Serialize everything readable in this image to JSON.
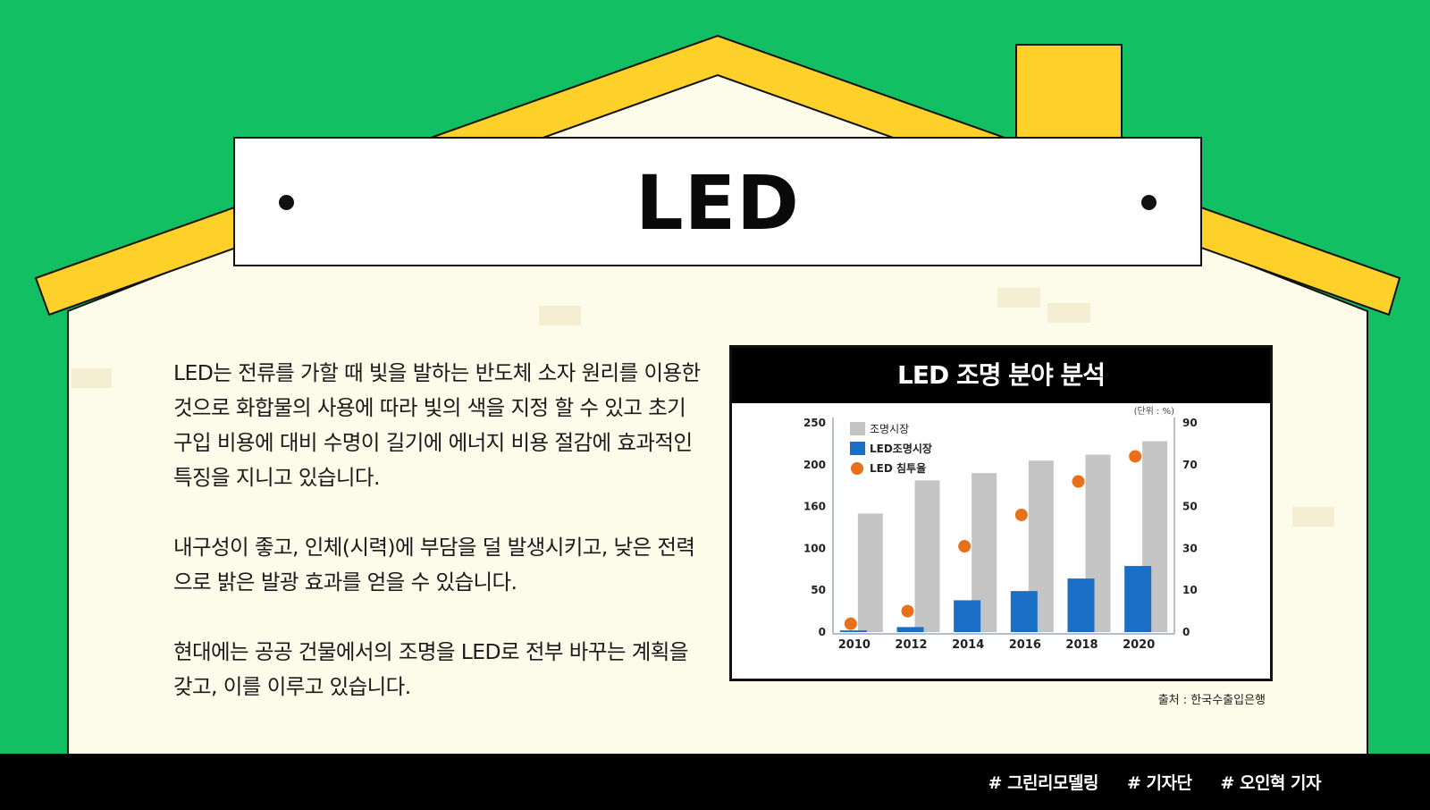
{
  "sign": {
    "title": "LED"
  },
  "body": {
    "paragraphs": [
      "LED는 전류를 가할 때 빛을 발하는 반도체 소자 원리를 이용한 것으로 화합물의 사용에 따라 빛의 색을 지정 할 수 있고 초기 구입 비용에 대비 수명이 길기에 에너지 비용 절감에 효과적인 특징을 지니고 있습니다.",
      "내구성이 좋고, 인체(시력)에 부담을 덜 발생시키고, 낮은 전력으로 밝은 발광 효과를 얻을 수 있습니다.",
      "현대에는 공공 건물에서의 조명을 LED로 전부 바꾸는 계획을 갖고, 이를 이루고 있습니다."
    ]
  },
  "chart": {
    "header": "LED 조명 분야 분석",
    "unit": "(단위 : %)",
    "source": "출처 : 한국수출입은행"
  },
  "chart_data": {
    "type": "bar",
    "title": "LED 조명 분야 분석",
    "categories": [
      "2010",
      "2012",
      "2014",
      "2016",
      "2018",
      "2020"
    ],
    "series": [
      {
        "name": "조명시장",
        "type": "bar",
        "axis": "left",
        "color": "#c4c4c4",
        "values": [
          150,
          185,
          192,
          205,
          212,
          228
        ]
      },
      {
        "name": "LED조명시장",
        "type": "bar",
        "axis": "left",
        "color": "#1a6fc4",
        "values": [
          2,
          6,
          38,
          49,
          64,
          79
        ]
      },
      {
        "name": "LED 침투율",
        "type": "scatter",
        "axis": "right",
        "color": "#e8701a",
        "values": [
          2,
          5,
          31,
          46,
          62,
          74
        ]
      }
    ],
    "left_axis": {
      "ticks": [
        "0",
        "50",
        "100",
        "160",
        "200",
        "250"
      ]
    },
    "right_axis": {
      "ticks": [
        "0",
        "10",
        "30",
        "50",
        "70",
        "90"
      ]
    },
    "legend_position": "top-left"
  },
  "footer": {
    "tags": [
      "# 그린리모델링",
      "# 기자단",
      "# 오인혁 기자"
    ]
  },
  "colors": {
    "background": "#12bf63",
    "roof": "#fdd02a",
    "wall": "#fdfbe9",
    "brick": "#f5eed3",
    "footer": "#000000"
  }
}
